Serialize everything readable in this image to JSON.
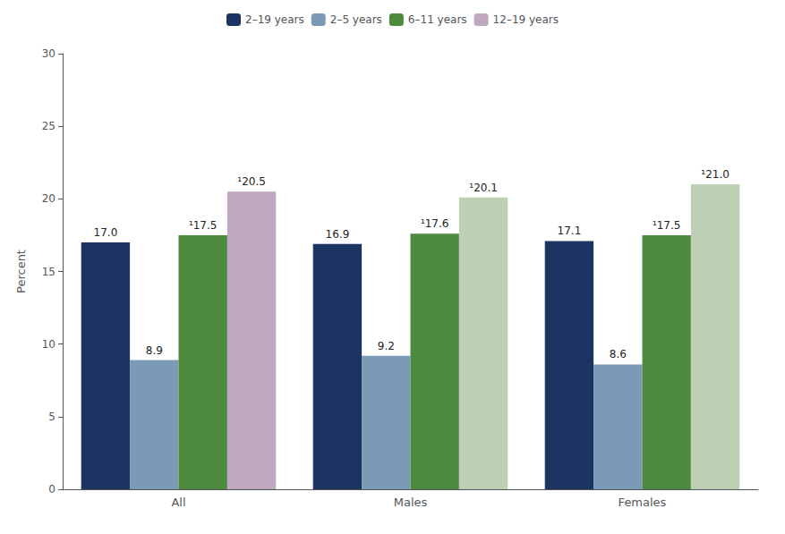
{
  "chart_data": {
    "type": "bar",
    "categories": [
      "All",
      "Males",
      "Females"
    ],
    "series": [
      {
        "name": "2–19 years",
        "color": "#1c3461",
        "colors": [
          "#1c3461",
          "#1c3461",
          "#1c3461"
        ],
        "values": [
          17.0,
          16.9,
          17.1
        ],
        "value_labels": [
          "17.0",
          "16.9",
          "17.1"
        ]
      },
      {
        "name": "2–5 years",
        "color": "#7a9ab5",
        "colors": [
          "#7a9ab5",
          "#7a9ab5",
          "#7a9ab5"
        ],
        "values": [
          8.9,
          9.2,
          8.6
        ],
        "value_labels": [
          "8.9",
          "9.2",
          "8.6"
        ]
      },
      {
        "name": "6–11 years",
        "color": "#4e8a3e",
        "colors": [
          "#4e8a3e",
          "#4e8a3e",
          "#4e8a3e"
        ],
        "values": [
          17.5,
          17.6,
          17.5
        ],
        "value_labels": [
          "¹17.5",
          "¹17.6",
          "¹17.5"
        ]
      },
      {
        "name": "12–19 years",
        "color": "#c0a8c0",
        "colors": [
          "#c0a8c0",
          "#bdd0b5",
          "#bdd0b5"
        ],
        "values": [
          20.5,
          20.1,
          21.0
        ],
        "value_labels": [
          "¹20.5",
          "¹20.1",
          "¹21.0"
        ]
      }
    ],
    "ylabel": "Percent",
    "ylim": [
      0,
      30
    ],
    "yticks": [
      0,
      5,
      10,
      15,
      20,
      25,
      30
    ],
    "grid": false,
    "legend": "top",
    "data_labels": true
  }
}
